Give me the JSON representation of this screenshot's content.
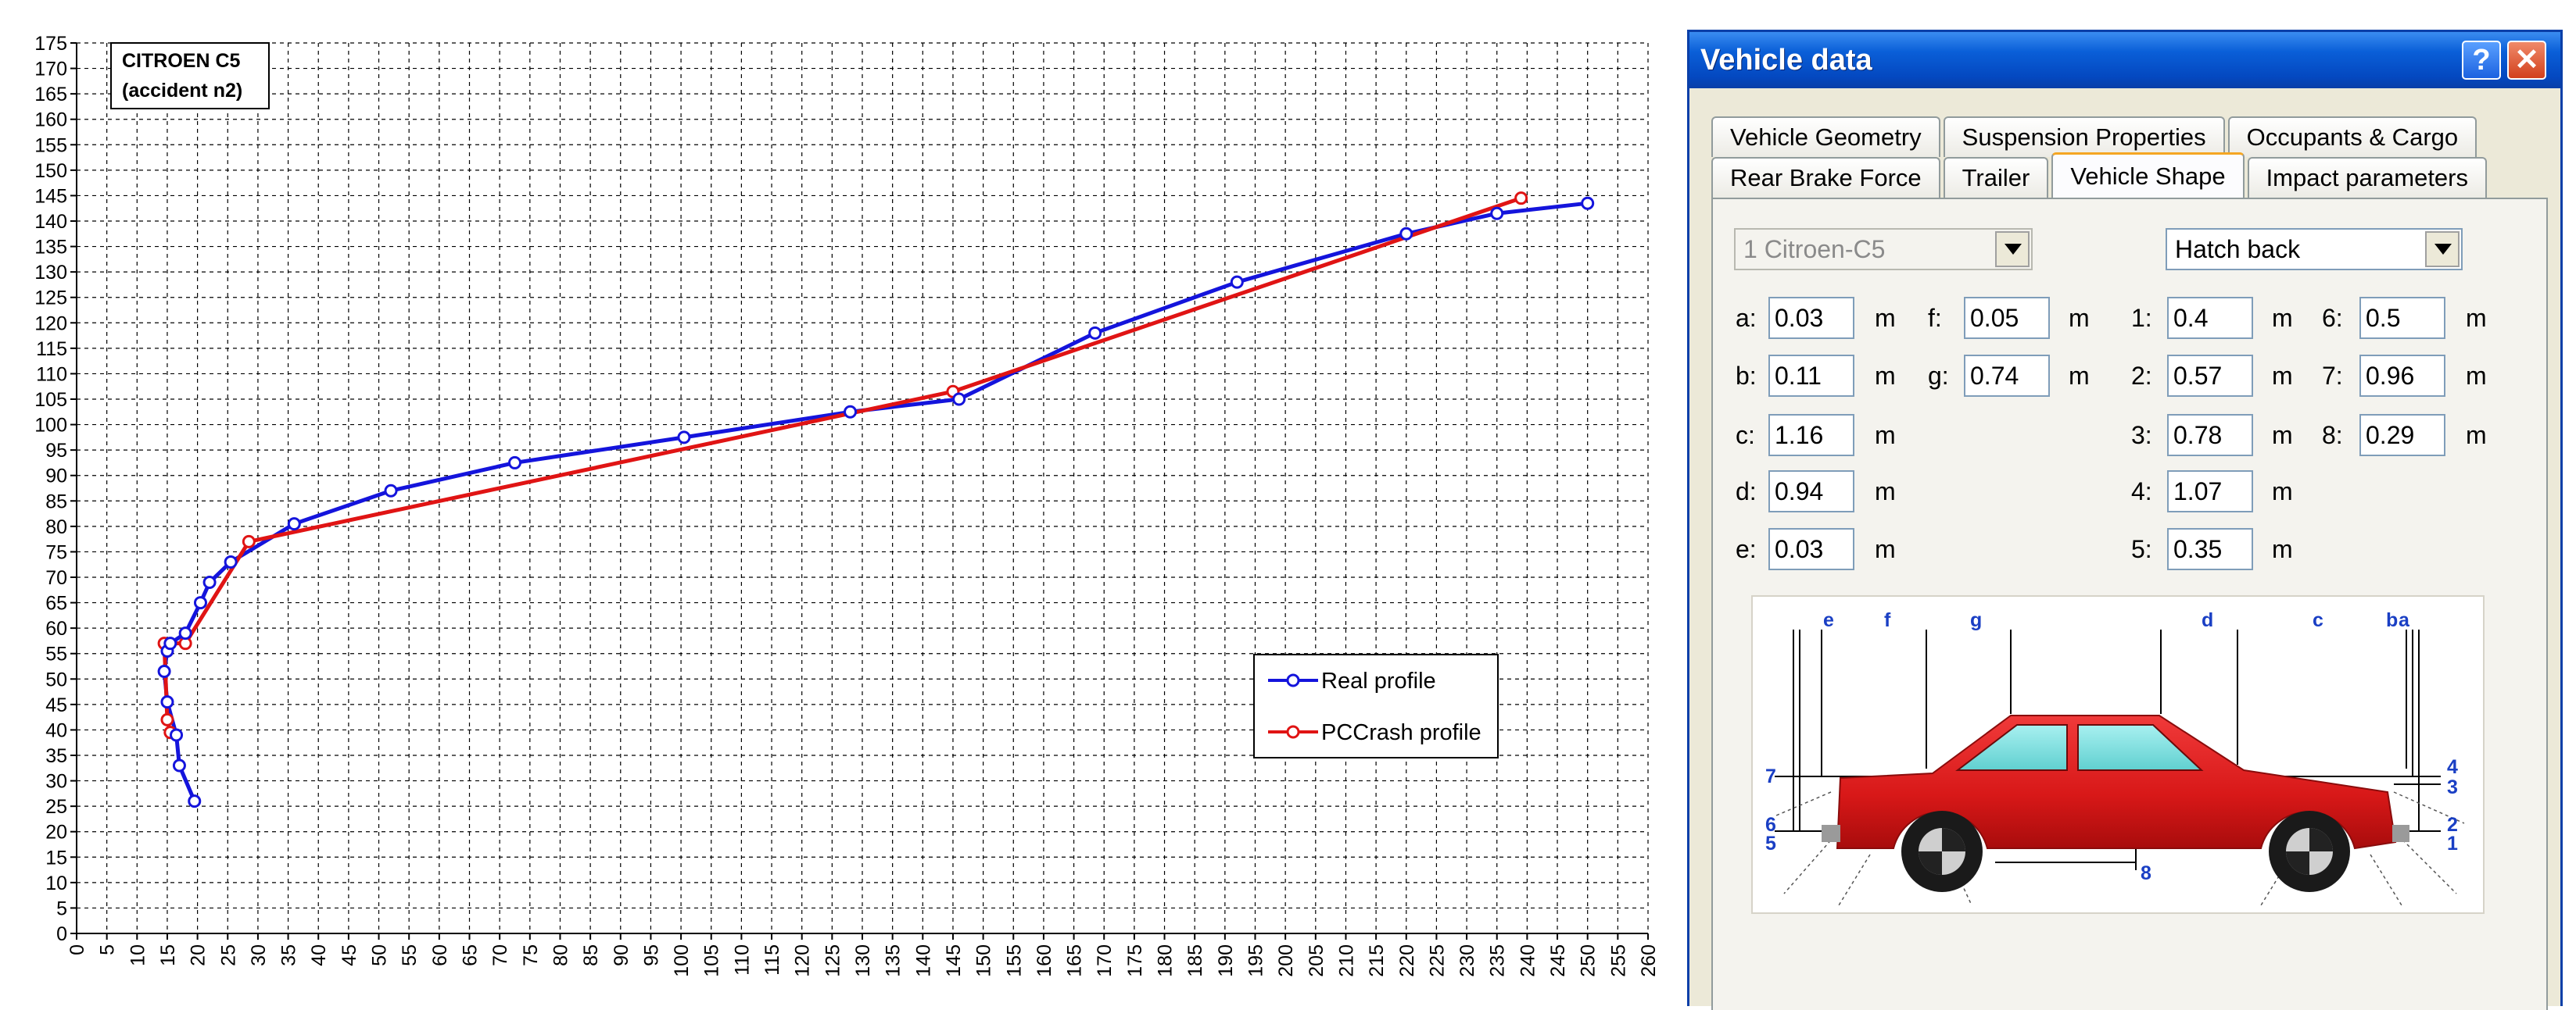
{
  "chart_data": {
    "type": "line",
    "annotation": [
      "CITROEN C5",
      "(accident n2)"
    ],
    "xlim": [
      0,
      260
    ],
    "ylim": [
      0,
      175
    ],
    "xticks": [
      0,
      5,
      10,
      15,
      20,
      25,
      30,
      35,
      40,
      45,
      50,
      55,
      60,
      65,
      70,
      75,
      80,
      85,
      90,
      95,
      100,
      105,
      110,
      115,
      120,
      125,
      130,
      135,
      140,
      145,
      150,
      155,
      160,
      165,
      170,
      175,
      180,
      185,
      190,
      195,
      200,
      205,
      210,
      215,
      220,
      225,
      230,
      235,
      240,
      245,
      250,
      255,
      260
    ],
    "yticks": [
      0,
      5,
      10,
      15,
      20,
      25,
      30,
      35,
      40,
      45,
      50,
      55,
      60,
      65,
      70,
      75,
      80,
      85,
      90,
      95,
      100,
      105,
      110,
      115,
      120,
      125,
      130,
      135,
      140,
      145,
      150,
      155,
      160,
      165,
      170,
      175
    ],
    "grid": true,
    "legend_position": "bottom-right",
    "series": [
      {
        "name": "Real profile",
        "color": "#1414dc",
        "x": [
          19.5,
          17,
          16.5,
          15,
          14.5,
          15,
          15.5,
          18,
          20.5,
          22,
          25.5,
          36,
          52,
          72.5,
          100.5,
          128,
          146,
          168.5,
          192,
          220,
          235,
          250
        ],
        "y": [
          26,
          33,
          39,
          45.5,
          51.5,
          55.5,
          57,
          59,
          65,
          69,
          73,
          80.5,
          87,
          92.5,
          97.5,
          102.5,
          105,
          118,
          128,
          137.5,
          141.5,
          143.5
        ]
      },
      {
        "name": "PCCrash profile",
        "color": "#e01414",
        "x": [
          15.5,
          15,
          14.5,
          18,
          28.5,
          145,
          239
        ],
        "y": [
          39.5,
          42,
          57,
          57,
          77,
          106.5,
          144.5
        ]
      }
    ]
  },
  "dialog": {
    "title": "Vehicle data",
    "help_glyph": "?",
    "close_glyph": "✕",
    "tabs_row1": [
      "Vehicle Geometry",
      "Suspension Properties",
      "Occupants & Cargo"
    ],
    "tabs_row2": [
      "Rear Brake Force",
      "Trailer",
      "Vehicle Shape",
      "Impact parameters"
    ],
    "active_tab": "Vehicle Shape",
    "vehicle_select": "1  Citroen-C5",
    "shape_select": "Hatch back",
    "fields_left": [
      {
        "label": "a:",
        "value": "0.03",
        "unit": "m"
      },
      {
        "label": "b:",
        "value": "0.11",
        "unit": "m"
      },
      {
        "label": "c:",
        "value": "1.16",
        "unit": "m"
      },
      {
        "label": "d:",
        "value": "0.94",
        "unit": "m"
      },
      {
        "label": "e:",
        "value": "0.03",
        "unit": "m"
      }
    ],
    "fields_fg": [
      {
        "label": "f:",
        "value": "0.05",
        "unit": "m"
      },
      {
        "label": "g:",
        "value": "0.74",
        "unit": "m"
      }
    ],
    "fields_num": [
      {
        "label": "1:",
        "value": "0.4",
        "unit": "m"
      },
      {
        "label": "2:",
        "value": "0.57",
        "unit": "m"
      },
      {
        "label": "3:",
        "value": "0.78",
        "unit": "m"
      },
      {
        "label": "4:",
        "value": "1.07",
        "unit": "m"
      },
      {
        "label": "5:",
        "value": "0.35",
        "unit": "m"
      }
    ],
    "fields_num2": [
      {
        "label": "6:",
        "value": "0.5",
        "unit": "m"
      },
      {
        "label": "7:",
        "value": "0.96",
        "unit": "m"
      },
      {
        "label": "8:",
        "value": "0.29",
        "unit": "m"
      }
    ],
    "diagram_labels": {
      "top": [
        "e",
        "f",
        "g",
        "d",
        "c",
        "b",
        "a"
      ],
      "left": [
        "7",
        "6",
        "5"
      ],
      "right": [
        "4",
        "3",
        "2",
        "1"
      ],
      "bottom": "8"
    }
  }
}
